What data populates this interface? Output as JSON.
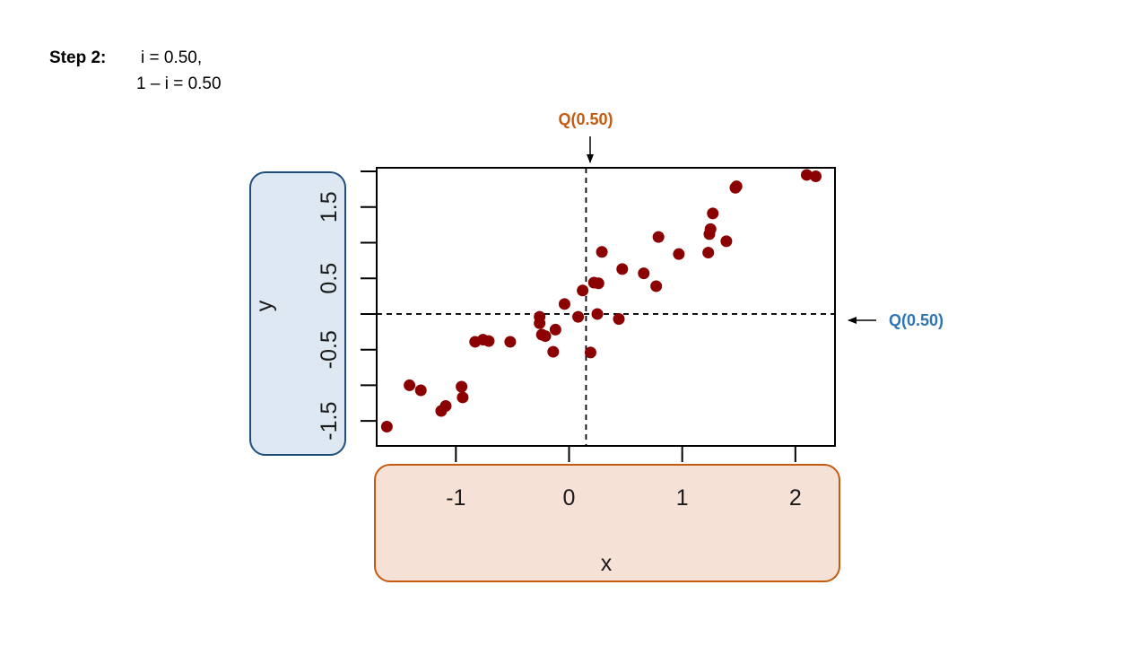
{
  "header": {
    "step_label": "Step 2:",
    "equation_1": "i = 0.50,",
    "equation_2": "1 – i = 0.50"
  },
  "colors": {
    "point": "#8b0000",
    "x_quantile_label": "#c55a11",
    "y_quantile_label": "#2e75b6",
    "y_axis_box_fill": "#dde8f3",
    "y_axis_box_border": "#1f4e79",
    "x_axis_box_fill": "#f6e1d6",
    "x_axis_box_border": "#c55a11"
  },
  "annotations": {
    "x_quantile_label": "Q(0.50)",
    "y_quantile_label": "Q(0.50)"
  },
  "chart_data": {
    "type": "scatter",
    "xlabel": "x",
    "ylabel": "y",
    "xlim": [
      -1.7,
      2.35
    ],
    "ylim": [
      -1.85,
      2.05
    ],
    "x_ticks": [
      -1,
      0,
      1,
      2
    ],
    "x_tick_labels": [
      "-1",
      "0",
      "1",
      "2"
    ],
    "y_ticks": [
      -1.5,
      -1.0,
      -0.5,
      0.0,
      0.5,
      1.0,
      1.5,
      2.0
    ],
    "y_tick_labels": [
      "-1.5",
      "",
      "-0.5",
      "",
      "0.5",
      "",
      "1.5",
      ""
    ],
    "grid": false,
    "quantile_x": 0.15,
    "quantile_y": 0.0,
    "points": [
      {
        "x": -1.61,
        "y": -1.58
      },
      {
        "x": -1.41,
        "y": -1.0
      },
      {
        "x": -1.31,
        "y": -1.07
      },
      {
        "x": -1.13,
        "y": -1.36
      },
      {
        "x": -1.09,
        "y": -1.29
      },
      {
        "x": -0.95,
        "y": -1.02
      },
      {
        "x": -0.94,
        "y": -1.17
      },
      {
        "x": -0.83,
        "y": -0.39
      },
      {
        "x": -0.76,
        "y": -0.36
      },
      {
        "x": -0.71,
        "y": -0.38
      },
      {
        "x": -0.52,
        "y": -0.39
      },
      {
        "x": -0.26,
        "y": -0.04
      },
      {
        "x": -0.26,
        "y": -0.13
      },
      {
        "x": -0.24,
        "y": -0.29
      },
      {
        "x": -0.21,
        "y": -0.31
      },
      {
        "x": -0.14,
        "y": -0.53
      },
      {
        "x": -0.12,
        "y": -0.22
      },
      {
        "x": -0.04,
        "y": 0.14
      },
      {
        "x": 0.08,
        "y": -0.04
      },
      {
        "x": 0.12,
        "y": 0.33
      },
      {
        "x": 0.19,
        "y": -0.54
      },
      {
        "x": 0.22,
        "y": 0.44
      },
      {
        "x": 0.25,
        "y": 0.0
      },
      {
        "x": 0.26,
        "y": 0.43
      },
      {
        "x": 0.29,
        "y": 0.87
      },
      {
        "x": 0.44,
        "y": -0.07
      },
      {
        "x": 0.47,
        "y": 0.63
      },
      {
        "x": 0.66,
        "y": 0.57
      },
      {
        "x": 0.77,
        "y": 0.39
      },
      {
        "x": 0.79,
        "y": 1.08
      },
      {
        "x": 0.97,
        "y": 0.84
      },
      {
        "x": 1.23,
        "y": 0.86
      },
      {
        "x": 1.24,
        "y": 1.12
      },
      {
        "x": 1.25,
        "y": 1.19
      },
      {
        "x": 1.27,
        "y": 1.41
      },
      {
        "x": 1.39,
        "y": 1.02
      },
      {
        "x": 1.47,
        "y": 1.77
      },
      {
        "x": 1.48,
        "y": 1.79
      },
      {
        "x": 2.1,
        "y": 1.95
      },
      {
        "x": 2.18,
        "y": 1.93
      }
    ]
  }
}
